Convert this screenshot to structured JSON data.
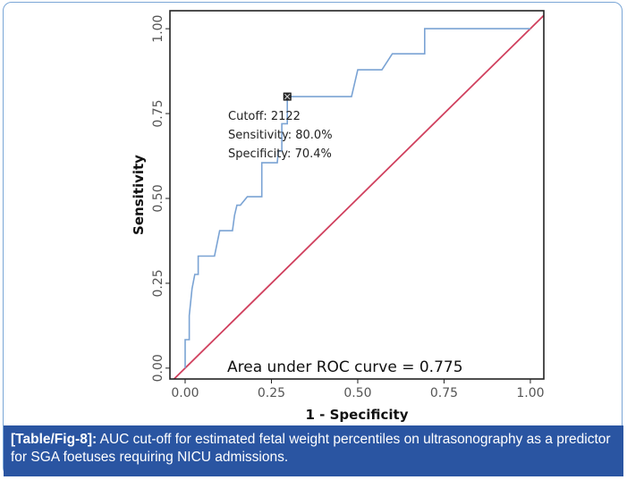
{
  "chart_data": {
    "type": "line",
    "xlabel": "1 - Specificity",
    "ylabel": "Sensitivity",
    "xlim": [
      -0.044,
      1.039
    ],
    "ylim": [
      -0.032,
      1.053
    ],
    "xticks": [
      "0.00",
      "0.25",
      "0.50",
      "0.75",
      "1.00"
    ],
    "yticks": [
      "0.00",
      "0.25",
      "0.50",
      "0.75",
      "1.00"
    ],
    "grid": false,
    "series": [
      {
        "color": "#7aa3d4",
        "x": [
          0,
          0,
          0.012,
          0.012,
          0.02,
          0.028,
          0.038,
          0.038,
          0.085,
          0.1,
          0.137,
          0.143,
          0.15,
          0.16,
          0.18,
          0.222,
          0.222,
          0.267,
          0.27,
          0.28,
          0.28,
          0.296,
          0.296,
          0.3,
          0.482,
          0.5,
          0.57,
          0.6,
          0.694,
          0.694,
          0.98,
          1.0
        ],
        "y": [
          0,
          0.084,
          0.084,
          0.155,
          0.234,
          0.276,
          0.276,
          0.33,
          0.33,
          0.405,
          0.405,
          0.45,
          0.48,
          0.48,
          0.505,
          0.505,
          0.605,
          0.605,
          0.64,
          0.64,
          0.72,
          0.72,
          0.8,
          0.8,
          0.8,
          0.879,
          0.879,
          0.926,
          0.926,
          1.0,
          1.0,
          1.0
        ]
      },
      {
        "color": "#d0405e",
        "x": [
          -0.05,
          1.05
        ],
        "y": [
          -0.05,
          1.05
        ]
      }
    ],
    "marker": {
      "x": 0.296,
      "y": 0.8
    },
    "annotations": [
      "Cutoff: 2122",
      "Sensitivity: 80.0%",
      "Specificity: 70.4%"
    ],
    "auc_label": "Area under ROC curve =  0.775"
  },
  "caption": {
    "label": "[Table/Fig-8]:",
    "text": " AUC cut-off for estimated fetal weight percentiles on ultrasonography as a predictor for SGA foetuses requiring NICU admissions."
  },
  "colors": {
    "caption_bg": "#2a55a2",
    "curve": "#7aa3d4",
    "reference": "#d0405e"
  }
}
